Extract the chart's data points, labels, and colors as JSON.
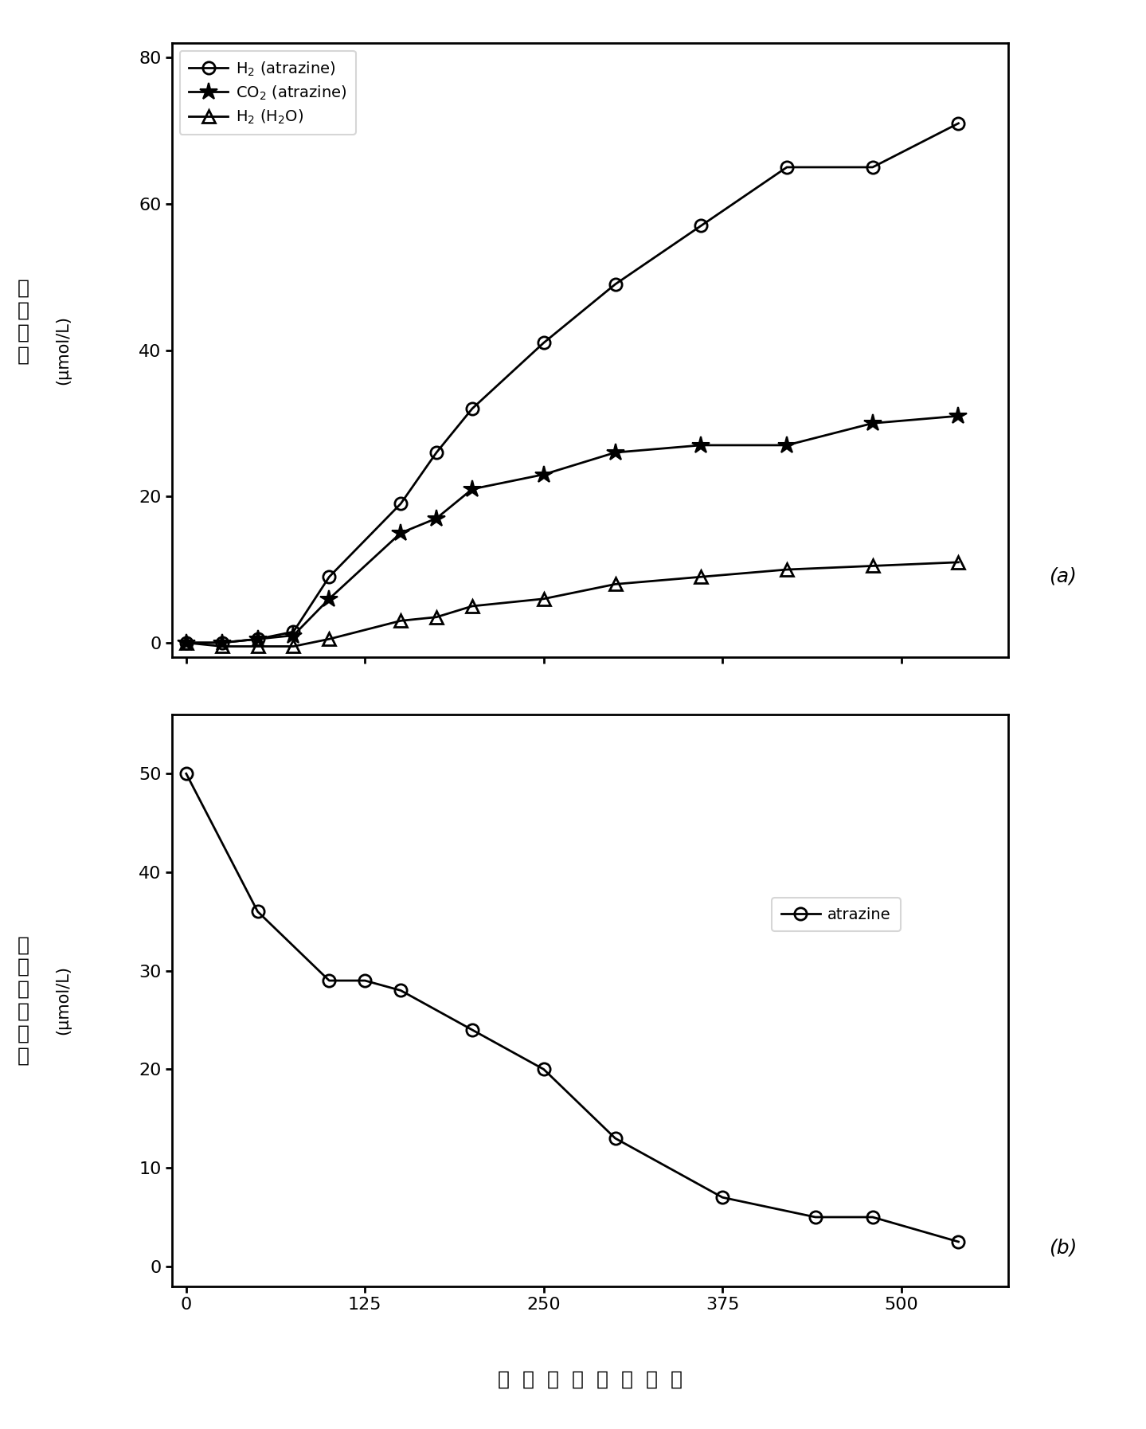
{
  "panel_a": {
    "ylabel_chinese": "气\n体\n产\n量",
    "ylabel_units": "(μmol/L)",
    "ylim": [
      -2,
      82
    ],
    "yticks": [
      0,
      20,
      40,
      60,
      80
    ],
    "xlim": [
      -10,
      575
    ],
    "xticks": [
      0,
      125,
      250,
      375,
      500
    ],
    "series": {
      "H2_atrazine": {
        "label": "H$_2$ (atrazine)",
        "x": [
          0,
          25,
          50,
          75,
          100,
          150,
          175,
          200,
          250,
          300,
          360,
          420,
          480,
          540
        ],
        "y": [
          0,
          0,
          0.5,
          1.5,
          9,
          19,
          26,
          32,
          41,
          49,
          57,
          65,
          65,
          71
        ],
        "marker": "o"
      },
      "CO2_atrazine": {
        "label": "CO$_2$ (atrazine)",
        "x": [
          0,
          25,
          50,
          75,
          100,
          150,
          175,
          200,
          250,
          300,
          360,
          420,
          480,
          540
        ],
        "y": [
          0,
          0,
          0.5,
          1,
          6,
          15,
          17,
          21,
          23,
          26,
          27,
          27,
          30,
          31
        ],
        "marker": "*"
      },
      "H2_H2O": {
        "label": "H$_2$ (H$_2$O)",
        "x": [
          0,
          25,
          50,
          75,
          100,
          150,
          175,
          200,
          250,
          300,
          360,
          420,
          480,
          540
        ],
        "y": [
          0,
          -0.5,
          -0.5,
          -0.5,
          0.5,
          3,
          3.5,
          5,
          6,
          8,
          9,
          10,
          10.5,
          11
        ],
        "marker": "^"
      }
    }
  },
  "panel_b": {
    "ylabel_chinese": "阿\n特\n拉\n津\n浓\n度",
    "ylabel_units": "(μmol/L)",
    "ylim": [
      -2,
      56
    ],
    "yticks": [
      0,
      10,
      20,
      30,
      40,
      50
    ],
    "xlim": [
      -10,
      575
    ],
    "xticks": [
      0,
      125,
      250,
      375,
      500
    ],
    "series": {
      "atrazine": {
        "label": "atrazine",
        "x": [
          0,
          50,
          100,
          125,
          150,
          200,
          250,
          300,
          375,
          440,
          480,
          540
        ],
        "y": [
          50,
          36,
          29,
          29,
          28,
          24,
          20,
          13,
          7,
          5,
          5,
          2.5
        ],
        "marker": "o"
      }
    }
  },
  "xlabel_chinese": "光  照  时  间  （  分  钟  ）",
  "line_color": "black",
  "line_width": 2.0,
  "figsize": [
    14.39,
    17.94
  ],
  "dpi": 100
}
